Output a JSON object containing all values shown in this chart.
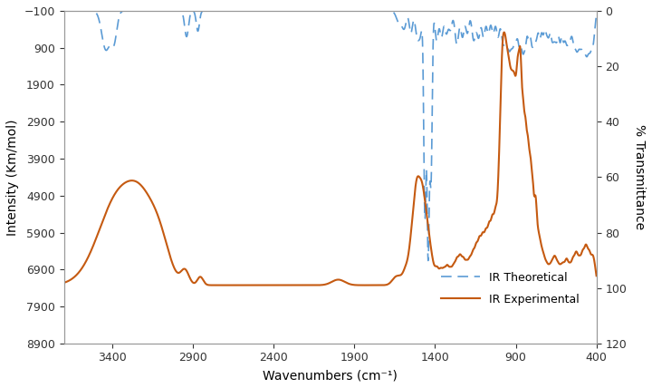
{
  "xlabel": "Wavenumbers (cm⁻¹)",
  "ylabel_left": "Intensity (Km/mol)",
  "ylabel_right": "% Transmittance",
  "left_ylim": [
    8900,
    -100
  ],
  "right_ylim": [
    120,
    0
  ],
  "xlim_left": 3700,
  "xlim_right": 400,
  "left_yticks": [
    -100,
    900,
    1900,
    2900,
    3900,
    4900,
    5900,
    6900,
    7900,
    8900
  ],
  "right_yticks": [
    0,
    20,
    40,
    60,
    80,
    100,
    120
  ],
  "xticks": [
    3400,
    2900,
    2400,
    1900,
    1400,
    900,
    400
  ],
  "theoretical_color": "#5B9BD5",
  "experimental_color": "#C55A11",
  "background_color": "#ffffff",
  "label_theoretical": "IR Theoretical",
  "label_experimental": "IR Experimental"
}
